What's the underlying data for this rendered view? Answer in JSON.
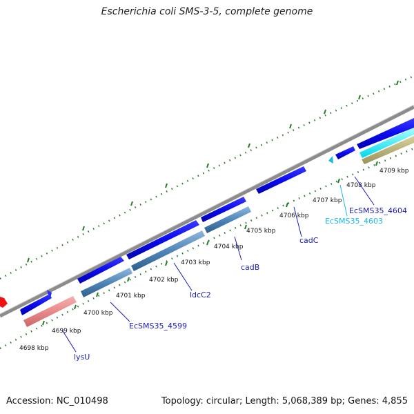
{
  "title": "Escherichia coli SMS-3-5, complete genome",
  "footer": {
    "accession": "Accession: NC_010498",
    "summary": "Topology: circular; Length: 5,068,389 bp; Genes: 4,855"
  },
  "ticks": [
    "4698 kbp",
    "4699 kbp",
    "4700 kbp",
    "4701 kbp",
    "4702 kbp",
    "4703 kbp",
    "4704 kbp",
    "4705 kbp",
    "4706 kbp",
    "4707 kbp",
    "4708 kbp",
    "4709 kbp"
  ],
  "genes": [
    {
      "name": "lysU",
      "color": "#1a1ab8"
    },
    {
      "name": "EcSMS35_4599",
      "color": "#1a1ab8"
    },
    {
      "name": "ldcC2",
      "color": "#1a1ab8"
    },
    {
      "name": "cadB",
      "color": "#1a1ab8"
    },
    {
      "name": "cadC",
      "color": "#1a1ab8"
    },
    {
      "name": "EcSMS35_4603",
      "color": "#19b8e6"
    },
    {
      "name": "EcSMS35_4604",
      "color": "#1a1ab8"
    }
  ],
  "colors": {
    "cds": "#0a0af0",
    "gene_pink": "#e88a8a",
    "gene_steel": "#4f86b8",
    "cyan": "#00ffff",
    "olive": "#b5ad72",
    "tick_green": "#2a7a2a",
    "backbone": "#8c8c8c",
    "red_marker": "#ee1111"
  }
}
